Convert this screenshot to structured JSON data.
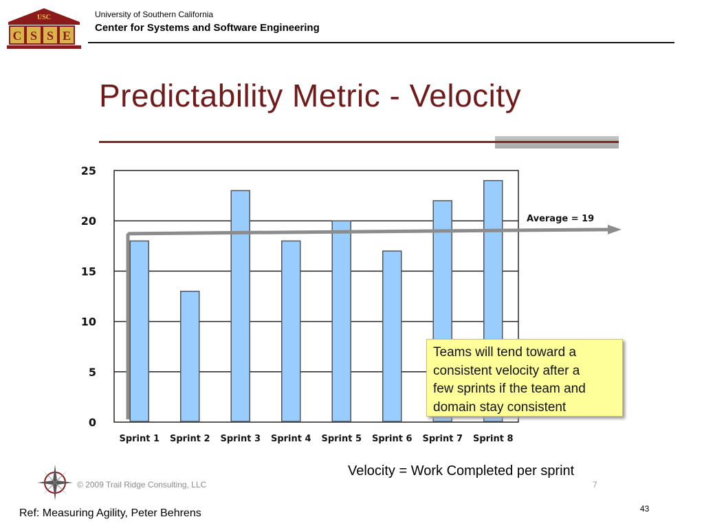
{
  "header": {
    "logo_banner": "USC",
    "logo_letters": [
      "C",
      "S",
      "S",
      "E"
    ],
    "university": "University of Southern California",
    "center": "Center for Systems and Software Engineering"
  },
  "slide": {
    "title": "Predictability Metric - Velocity",
    "callout_lines": [
      "Teams will tend toward a",
      "consistent velocity after a",
      "few sprints if the team and",
      "domain stay consistent"
    ],
    "caption": "Velocity = Work Completed per sprint",
    "copyright": "© 2009 Trail Ridge Consulting, LLC",
    "small_page": "7",
    "reference": "Ref: Measuring Agility, Peter Behrens",
    "page_number": "43"
  },
  "colors": {
    "bar_fill": "#99ccff",
    "bar_stroke": "#555555",
    "average_line": "#8c8c8c",
    "title": "#6e1b1b"
  },
  "chart_data": {
    "type": "bar",
    "categories": [
      "Sprint 1",
      "Sprint 2",
      "Sprint 3",
      "Sprint 4",
      "Sprint 5",
      "Sprint 6",
      "Sprint 7",
      "Sprint 8"
    ],
    "values": [
      18,
      13,
      23,
      18,
      20,
      17,
      22,
      24
    ],
    "ylim": [
      0,
      25
    ],
    "yticks": [
      0,
      5,
      10,
      15,
      20,
      25
    ],
    "grid": true,
    "title": "",
    "xlabel": "",
    "ylabel": "",
    "average": {
      "value": 19,
      "label": "Average = 19"
    }
  }
}
